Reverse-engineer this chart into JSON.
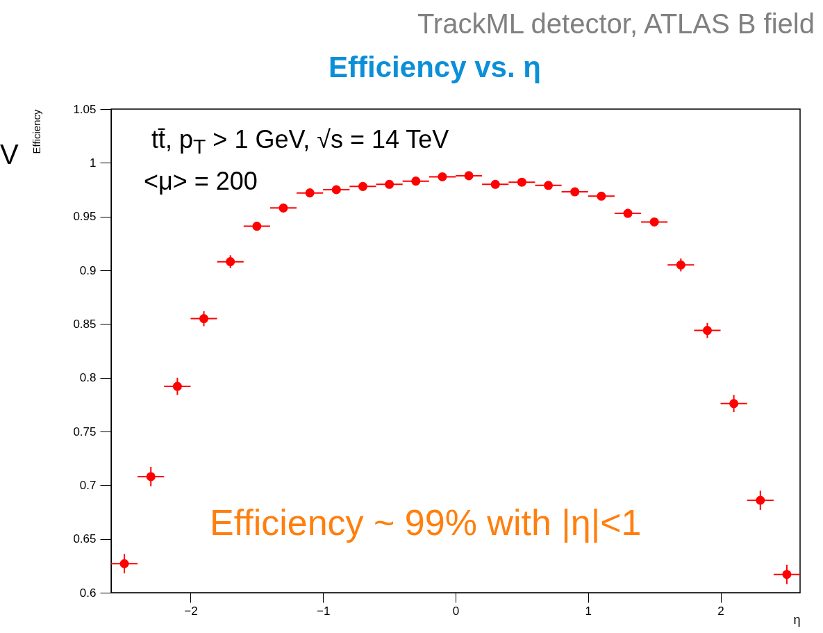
{
  "chart_data": {
    "type": "scatter",
    "title": "Efficiency vs. η",
    "xlabel": "η",
    "ylabel": "Efficiency",
    "annotations": [
      "TrackML detector, ATLAS B field",
      "tt̄, p$_{T}$ > 1 GeV, √s = 14 TeV",
      "<μ> = 200",
      "Efficiency ~ 99% with |η|<1",
      "V"
    ],
    "x": [
      -2.5,
      -2.3,
      -2.1,
      -1.9,
      -1.7,
      -1.5,
      -1.3,
      -1.1,
      -0.9,
      -0.7,
      -0.5,
      -0.3,
      -0.1,
      0.1,
      0.3,
      0.5,
      0.7,
      0.9,
      1.1,
      1.3,
      1.5,
      1.7,
      1.9,
      2.1,
      2.3,
      2.5
    ],
    "series": [
      {
        "color": "#ff0000",
        "values": [
          0.627,
          0.708,
          0.792,
          0.855,
          0.908,
          0.941,
          0.958,
          0.972,
          0.975,
          0.978,
          0.98,
          0.983,
          0.987,
          0.988,
          0.98,
          0.982,
          0.979,
          0.973,
          0.969,
          0.953,
          0.945,
          0.905,
          0.844,
          0.776,
          0.686,
          0.617
        ],
        "errors": [
          0.009,
          0.009,
          0.008,
          0.007,
          0.006,
          0.004,
          0.004,
          0.003,
          0.003,
          0.003,
          0.003,
          0.003,
          0.003,
          0.003,
          0.003,
          0.003,
          0.003,
          0.003,
          0.003,
          0.004,
          0.004,
          0.006,
          0.007,
          0.008,
          0.009,
          0.009
        ],
        "xerrors": [
          0.1,
          0.1,
          0.1,
          0.1,
          0.1,
          0.1,
          0.1,
          0.1,
          0.1,
          0.1,
          0.1,
          0.1,
          0.1,
          0.1,
          0.1,
          0.1,
          0.1,
          0.1,
          0.1,
          0.1,
          0.1,
          0.1,
          0.1,
          0.1,
          0.1,
          0.1
        ]
      }
    ],
    "marker": "circle",
    "xlim": [
      -2.6,
      2.6
    ],
    "xticks": [
      {
        "value": -2,
        "label": "−2"
      },
      {
        "value": -1,
        "label": "−1"
      },
      0,
      1,
      2
    ],
    "ylim": [
      0.6,
      1.05
    ],
    "yticks": [
      {
        "value": 0.6,
        "label": "0.6"
      },
      0.65,
      {
        "value": 0.7,
        "label": "0.7"
      },
      0.75,
      {
        "value": 0.8,
        "label": "0.8"
      },
      0.85,
      {
        "value": 0.9,
        "label": "0.9"
      },
      0.95,
      1,
      1.05
    ]
  }
}
